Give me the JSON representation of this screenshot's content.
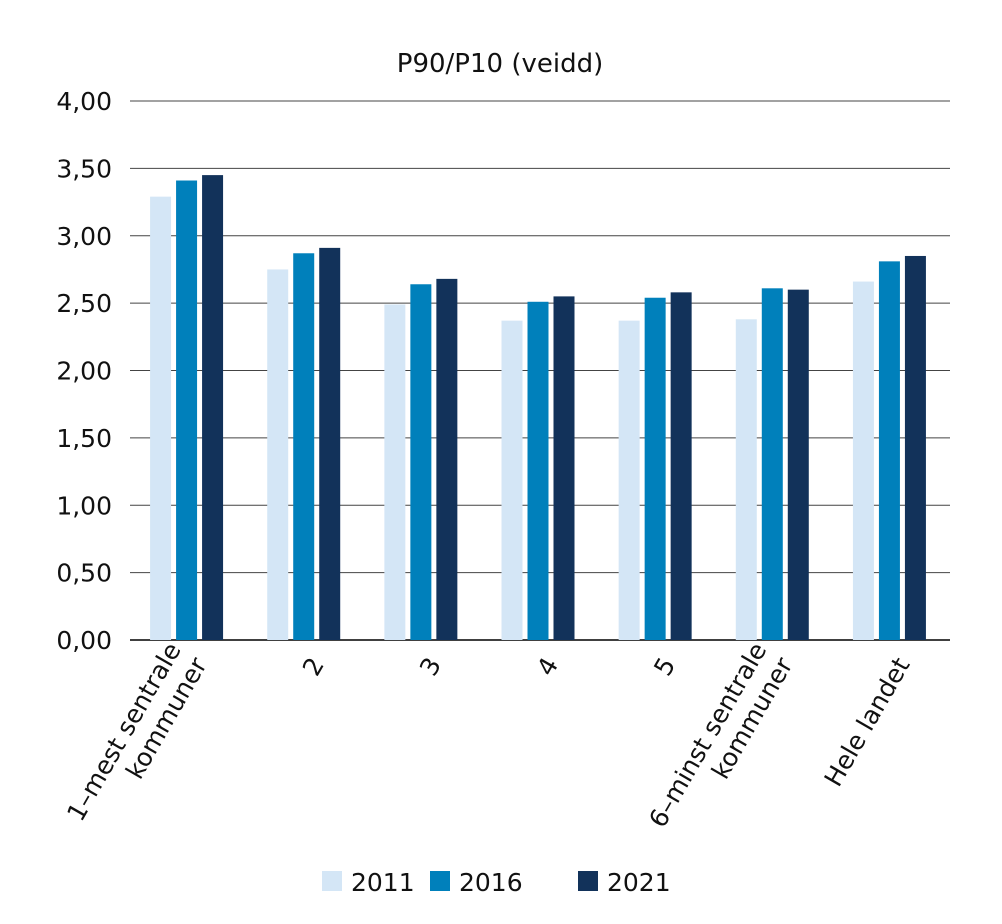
{
  "chart_data": {
    "type": "bar",
    "title": "P90/P10 (veidd)",
    "xlabel": "",
    "ylabel": "",
    "ylim": [
      0,
      4
    ],
    "yticks": [
      "0,00",
      "0,50",
      "1,00",
      "1,50",
      "2,00",
      "2,50",
      "3,00",
      "3,50",
      "4,00"
    ],
    "grid": true,
    "legend_position": "bottom",
    "categories": [
      [
        "1–mest sentrale",
        "kommuner"
      ],
      [
        "2"
      ],
      [
        "3"
      ],
      [
        "4"
      ],
      [
        "5"
      ],
      [
        "6–minst sentrale",
        "kommuner"
      ],
      [
        "Hele landet"
      ]
    ],
    "series": [
      {
        "name": "2011",
        "color": "#d4e6f6",
        "values": [
          3.29,
          2.75,
          2.49,
          2.37,
          2.37,
          2.38,
          2.66
        ]
      },
      {
        "name": "2016",
        "color": "#0080bb",
        "values": [
          3.41,
          2.87,
          2.64,
          2.51,
          2.54,
          2.61,
          2.81
        ]
      },
      {
        "name": "2021",
        "color": "#12325a",
        "values": [
          3.45,
          2.91,
          2.68,
          2.55,
          2.58,
          2.6,
          2.85
        ]
      }
    ]
  }
}
